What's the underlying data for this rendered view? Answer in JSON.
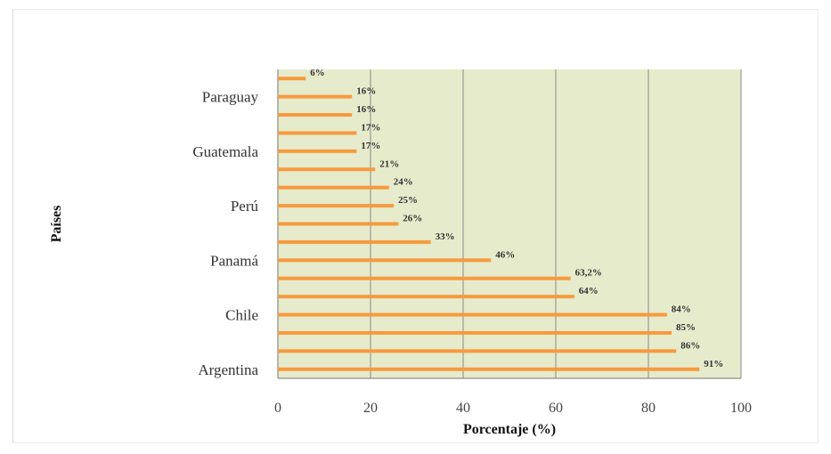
{
  "chart_data": {
    "type": "bar",
    "orientation": "horizontal",
    "xlabel": "Porcentaje (%)",
    "ylabel": "Países",
    "xlim": [
      0,
      100
    ],
    "x_ticks": [
      "0",
      "20",
      "40",
      "60",
      "80",
      "100"
    ],
    "y_tick_labels": [
      {
        "label": "Paraguay",
        "index": 1
      },
      {
        "label": "Guatemala",
        "index": 4
      },
      {
        "label": "Perú",
        "index": 7
      },
      {
        "label": "Panamá",
        "index": 10
      },
      {
        "label": "Chile",
        "index": 13
      },
      {
        "label": "Argentina",
        "index": 16
      }
    ],
    "bars": [
      {
        "value": 6,
        "label": "6%"
      },
      {
        "value": 16,
        "label": "16%"
      },
      {
        "value": 16,
        "label": "16%"
      },
      {
        "value": 17,
        "label": "17%"
      },
      {
        "value": 17,
        "label": "17%"
      },
      {
        "value": 21,
        "label": "21%"
      },
      {
        "value": 24,
        "label": "24%"
      },
      {
        "value": 25,
        "label": "25%"
      },
      {
        "value": 26,
        "label": "26%"
      },
      {
        "value": 33,
        "label": "33%"
      },
      {
        "value": 46,
        "label": "46%"
      },
      {
        "value": 63.2,
        "label": "63,2%"
      },
      {
        "value": 64,
        "label": "64%"
      },
      {
        "value": 84,
        "label": "84%"
      },
      {
        "value": 85,
        "label": "85%"
      },
      {
        "value": 86,
        "label": "86%"
      },
      {
        "value": 91,
        "label": "91%"
      }
    ],
    "grid": true,
    "colors": {
      "bar": "#f79a3e",
      "plot_bg": "#e6ebcb",
      "grid": "#8a8a8a"
    }
  }
}
